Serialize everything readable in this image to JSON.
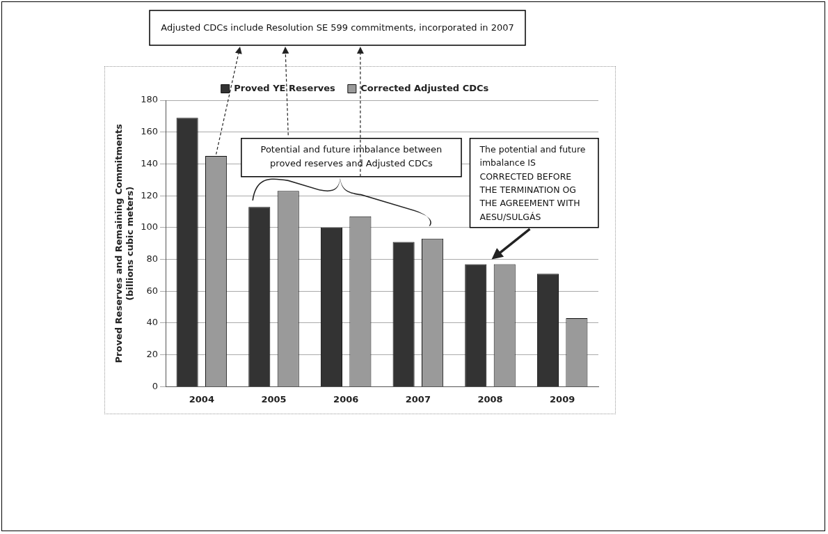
{
  "chart_data": {
    "type": "bar",
    "ylabel": "Proved Reserves and Remaining Commitments\n(billions cubic meters)",
    "categories": [
      "2004",
      "2005",
      "2006",
      "2007",
      "2008",
      "2009"
    ],
    "series": [
      {
        "name": "Proved YE Reserves",
        "color": "#333333",
        "values": [
          169,
          113,
          100,
          91,
          77,
          71
        ]
      },
      {
        "name": "Corrected Adjusted CDCs",
        "color": "#9a9a9a",
        "values": [
          145,
          123,
          107,
          93,
          77,
          43
        ]
      }
    ],
    "ylim": [
      0,
      180
    ],
    "yticks": [
      0,
      20,
      40,
      60,
      80,
      100,
      120,
      140,
      160,
      180
    ],
    "grid": "y",
    "legend": "top",
    "annotations": [
      "Adjusted CDCs include Resolution SE 599 commitments, incorporated in 2007",
      "Potential and future imbalance between proved reserves and Adjusted CDCs",
      "The potential and future imbalance IS CORRECTED BEFORE THE TERMINATION OG THE AGREEMENT WITH AESU/SULGÁS"
    ]
  }
}
